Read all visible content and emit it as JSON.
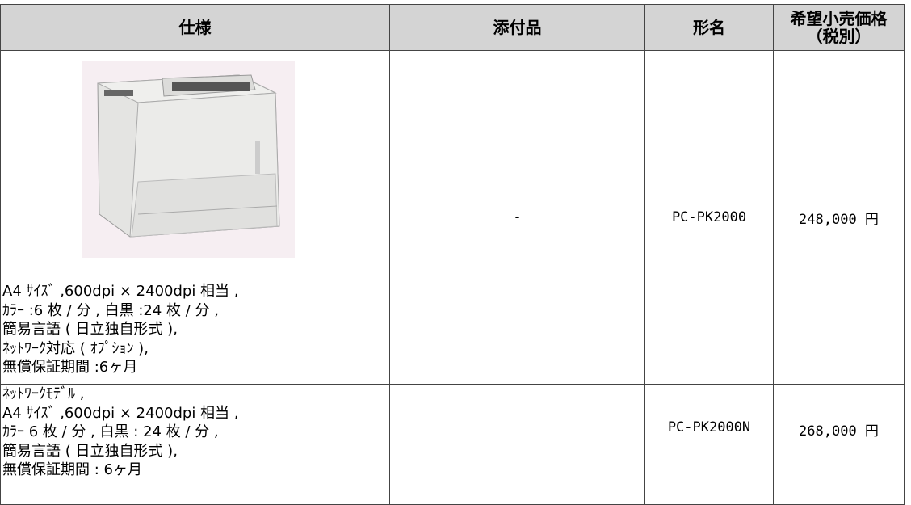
{
  "headers": [
    [
      "仕様"
    ],
    [
      "添付品"
    ],
    [
      "形名"
    ],
    [
      "希望小売価格",
      "（税別）"
    ]
  ],
  "rows": [
    {
      "spec": [
        "A4 ｻｲｽﾞ ,600dpi × 2400dpi 相当 ,",
        "ｶﾗｰ :6 枚 / 分 , 白黒 :24 枚 / 分 ,",
        "簡易言語 ( 日立独自形式 ),",
        "ﾈｯﾄﾜｰｸ対応 ( ｵﾌﾟｼｮﾝ ),",
        "無償保証期間 :6ヶ月"
      ],
      "accessory": "-",
      "model": "PC-PK2000",
      "price": "248,000 円"
    },
    {
      "spec": [
        "ﾈｯﾄﾜｰｸﾓﾃﾞﾙ ,",
        "A4 ｻｲｽﾞ ,600dpi × 2400dpi 相当 ,",
        "ｶﾗｰ 6 枚 / 分 , 白黒 : 24 枚 / 分 ,",
        "簡易言語 ( 日立独自形式 ),",
        "無償保証期間 : 6ヶ月"
      ],
      "model": "PC-PK2000N",
      "price": "268,000 円"
    }
  ]
}
